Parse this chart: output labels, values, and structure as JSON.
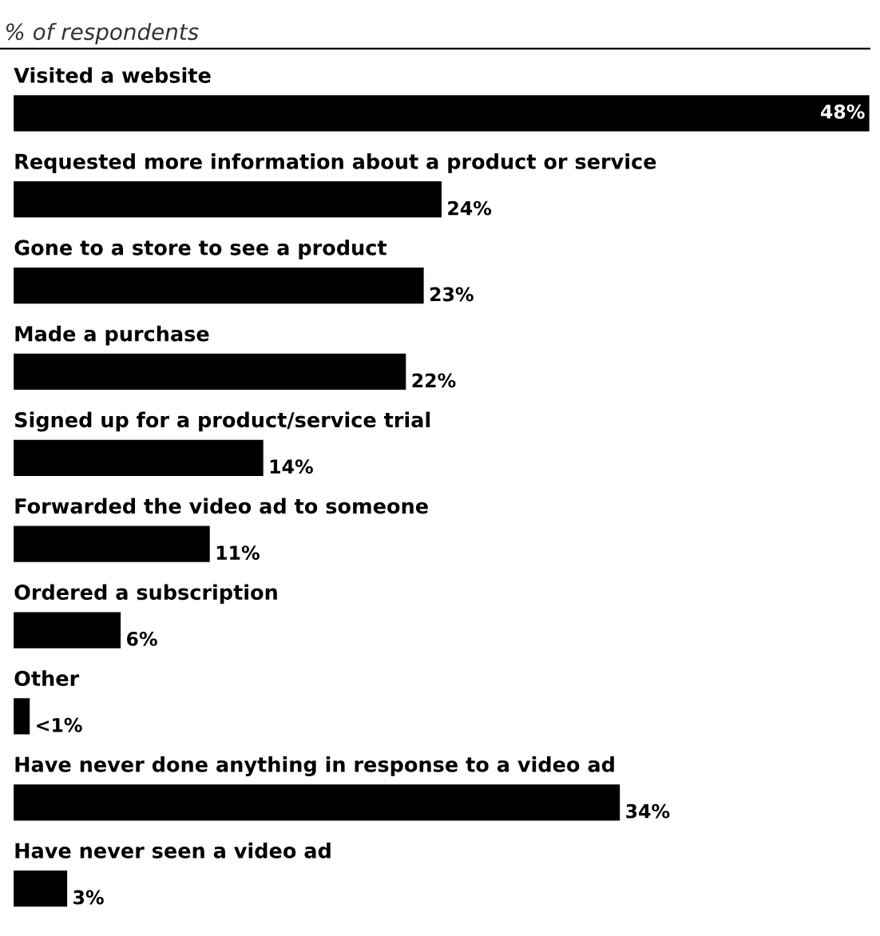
{
  "chart_data": {
    "type": "bar",
    "orientation": "horizontal",
    "title": "% of respondents",
    "categories": [
      "Visited a website",
      "Requested more information about a product or service",
      "Gone to a store to see a product",
      "Made a purchase",
      "Signed up for a product/service trial",
      "Forwarded the video ad to someone",
      "Ordered a subscription",
      "Other",
      "Have never done anything in response to a video ad",
      "Have never seen a video ad"
    ],
    "values": [
      48,
      24,
      23,
      22,
      14,
      11,
      6,
      0.9,
      34,
      3
    ],
    "value_labels": [
      "48%",
      "24%",
      "23%",
      "22%",
      "14%",
      "11%",
      "6%",
      "<1%",
      "34%",
      "3%"
    ],
    "color": "#000000"
  }
}
